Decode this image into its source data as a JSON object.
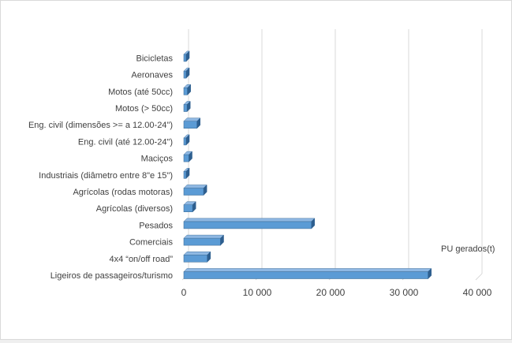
{
  "chart_data": {
    "type": "bar",
    "orientation": "horizontal",
    "style": "3d-bar",
    "categories": [
      "Ligeiros de passageiros/turismo",
      "4x4 “on/off road”",
      "Comerciais",
      "Pesados",
      "Agrícolas (diversos)",
      "Agrícolas (rodas motoras)",
      "Industriais (diâmetro entre 8\"e 15\")",
      "Maciços",
      "Eng. civil (até 12.00-24\")",
      "Eng. civil (dimensões >= a 12.00-24\")",
      "Motos (> 50cc)",
      "Motos (até 50cc)",
      "Aeronaves",
      "Bicicletas"
    ],
    "series": [
      {
        "name": "PU gerados(t)",
        "values": [
          33300,
          3200,
          5000,
          17400,
          1200,
          2700,
          250,
          700,
          200,
          1800,
          450,
          500,
          150,
          300
        ]
      }
    ],
    "x_ticks": [
      "0",
      "10 000",
      "20 000",
      "30 000",
      "40 000"
    ],
    "xlim": [
      0,
      40000
    ],
    "grid": "vertical",
    "legend": "right",
    "bar_color": "#5b9bd5"
  }
}
